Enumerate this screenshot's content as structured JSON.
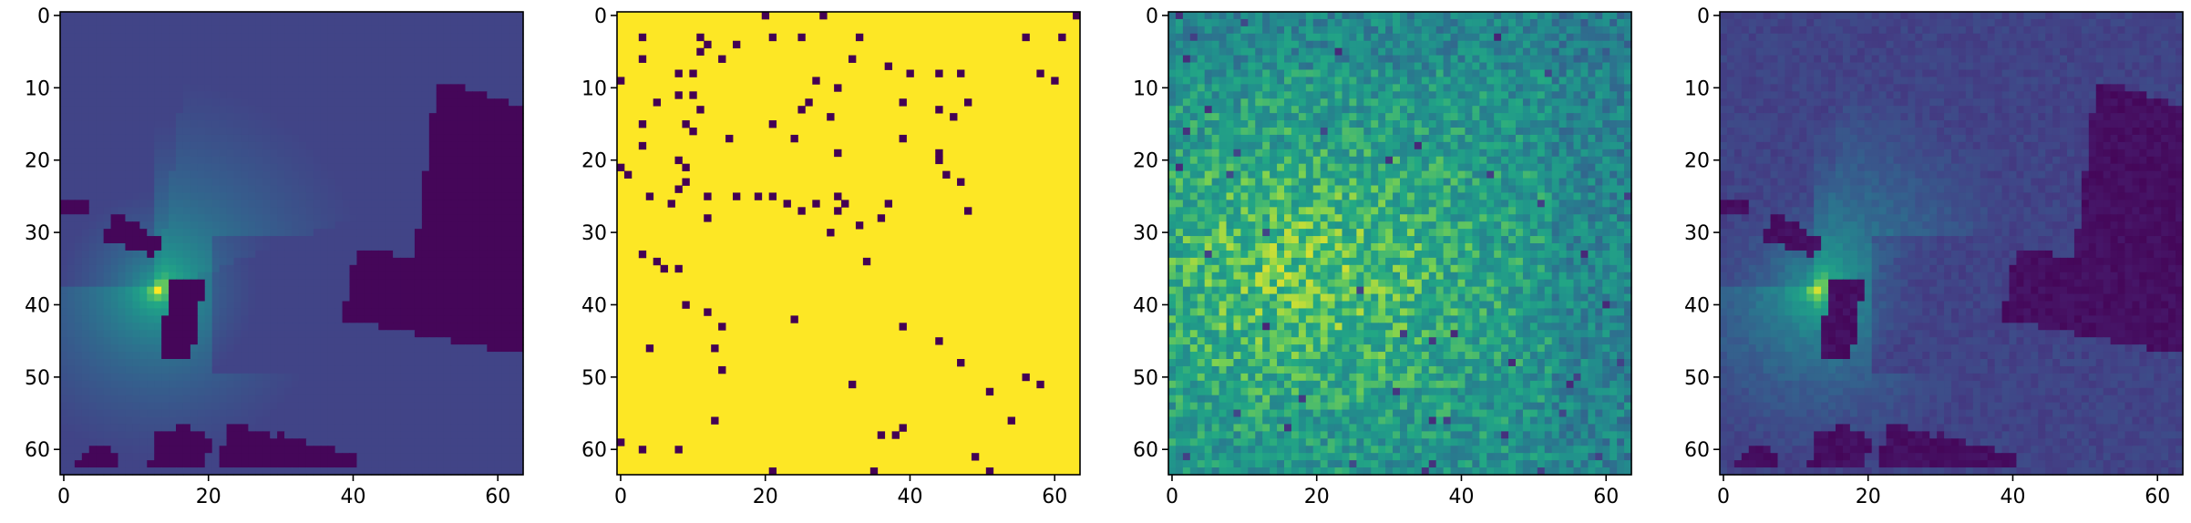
{
  "chart_data": [
    {
      "type": "heatmap",
      "panel": "radio-map",
      "grid_size": [
        64,
        64
      ],
      "xlim": [
        0,
        63
      ],
      "ylim": [
        63,
        0
      ],
      "xticks": [
        "0",
        "20",
        "40",
        "60"
      ],
      "yticks": [
        "0",
        "10",
        "20",
        "30",
        "40",
        "50",
        "60"
      ],
      "colormap": "viridis",
      "transmitter": {
        "x": 13,
        "y": 38
      },
      "buildings": [
        {
          "polygon": [
            [
              0,
              25.5
            ],
            [
              4,
              26
            ],
            [
              4,
              28
            ],
            [
              0,
              27.5
            ]
          ]
        },
        {
          "polygon": [
            [
              7,
              28.5
            ],
            [
              9,
              28.5
            ],
            [
              14,
              31.5
            ],
            [
              13,
              34
            ],
            [
              6,
              31.5
            ]
          ]
        },
        {
          "polygon": [
            [
              15.5,
              36.5
            ],
            [
              20,
              37
            ],
            [
              18,
              48.5
            ],
            [
              13.5,
              48.5
            ]
          ]
        },
        {
          "polygon": [
            [
              52,
              10.5
            ],
            [
              55,
              10
            ],
            [
              62,
              12.5
            ],
            [
              64,
              13
            ],
            [
              64,
              47.5
            ],
            [
              39,
              42.5
            ],
            [
              41,
              32.5
            ],
            [
              49,
              34
            ]
          ]
        },
        {
          "polygon": [
            [
              1.5,
              63.5
            ],
            [
              3,
              61
            ],
            [
              5,
              59.5
            ],
            [
              8,
              61
            ],
            [
              7.5,
              63.5
            ]
          ]
        },
        {
          "polygon": [
            [
              12,
              63.5
            ],
            [
              13.5,
              58.5
            ],
            [
              17,
              57
            ],
            [
              21,
              59
            ],
            [
              20,
              63.5
            ]
          ]
        },
        {
          "polygon": [
            [
              21.5,
              63.5
            ],
            [
              23.5,
              56.5
            ],
            [
              30,
              59
            ],
            [
              28,
              63.5
            ]
          ]
        },
        {
          "polygon": [
            [
              28,
              63.5
            ],
            [
              30,
              58
            ],
            [
              36,
              60
            ],
            [
              35,
              63.5
            ]
          ]
        },
        {
          "polygon": [
            [
              34,
              63.5
            ],
            [
              36.5,
              60
            ],
            [
              41,
              61.5
            ],
            [
              42,
              63.5
            ]
          ]
        }
      ]
    },
    {
      "type": "heatmap",
      "panel": "sampling-mask",
      "grid_size": [
        64,
        64
      ],
      "xlim": [
        0,
        63
      ],
      "ylim": [
        63,
        0
      ],
      "xticks": [
        "0",
        "20",
        "40",
        "60"
      ],
      "yticks": [
        "0",
        "10",
        "20",
        "30",
        "40",
        "50",
        "60"
      ],
      "background_color": "#fde725",
      "sample_color": "#440154",
      "samples": [
        [
          20,
          0
        ],
        [
          28,
          0
        ],
        [
          63,
          0
        ],
        [
          3,
          3
        ],
        [
          11,
          3
        ],
        [
          21,
          3
        ],
        [
          25,
          3
        ],
        [
          33,
          3
        ],
        [
          56,
          3
        ],
        [
          61,
          3
        ],
        [
          12,
          4
        ],
        [
          16,
          4
        ],
        [
          3,
          6
        ],
        [
          11,
          5
        ],
        [
          32,
          6
        ],
        [
          14,
          6
        ],
        [
          37,
          7
        ],
        [
          40,
          8
        ],
        [
          8,
          8
        ],
        [
          10,
          8
        ],
        [
          44,
          8
        ],
        [
          47,
          8
        ],
        [
          58,
          8
        ],
        [
          60,
          9
        ],
        [
          0,
          9
        ],
        [
          8,
          11
        ],
        [
          10,
          11
        ],
        [
          27,
          9
        ],
        [
          30,
          10
        ],
        [
          5,
          12
        ],
        [
          11,
          13
        ],
        [
          26,
          12
        ],
        [
          25,
          13
        ],
        [
          39,
          12
        ],
        [
          44,
          13
        ],
        [
          48,
          12
        ],
        [
          46,
          14
        ],
        [
          21,
          15
        ],
        [
          29,
          14
        ],
        [
          3,
          15
        ],
        [
          9,
          15
        ],
        [
          10,
          16
        ],
        [
          3,
          18
        ],
        [
          15,
          17
        ],
        [
          24,
          17
        ],
        [
          30,
          19
        ],
        [
          39,
          17
        ],
        [
          44,
          19
        ],
        [
          8,
          20
        ],
        [
          9,
          21
        ],
        [
          44,
          20
        ],
        [
          0,
          21
        ],
        [
          45,
          22
        ],
        [
          1,
          22
        ],
        [
          9,
          23
        ],
        [
          47,
          23
        ],
        [
          8,
          24
        ],
        [
          12,
          25
        ],
        [
          16,
          25
        ],
        [
          19,
          25
        ],
        [
          4,
          25
        ],
        [
          30,
          25
        ],
        [
          30,
          27
        ],
        [
          37,
          26
        ],
        [
          31,
          26
        ],
        [
          27,
          26
        ],
        [
          25,
          27
        ],
        [
          21,
          25
        ],
        [
          23,
          26
        ],
        [
          7,
          26
        ],
        [
          12,
          28
        ],
        [
          48,
          27
        ],
        [
          36,
          28
        ],
        [
          29,
          30
        ],
        [
          33,
          29
        ],
        [
          3,
          33
        ],
        [
          34,
          34
        ],
        [
          6,
          35
        ],
        [
          5,
          34
        ],
        [
          8,
          35
        ],
        [
          14,
          43
        ],
        [
          13,
          46
        ],
        [
          14,
          49
        ],
        [
          9,
          40
        ],
        [
          24,
          42
        ],
        [
          12,
          41
        ],
        [
          39,
          43
        ],
        [
          44,
          45
        ],
        [
          47,
          48
        ],
        [
          4,
          46
        ],
        [
          32,
          51
        ],
        [
          51,
          52
        ],
        [
          56,
          50
        ],
        [
          58,
          51
        ],
        [
          54,
          56
        ],
        [
          13,
          56
        ],
        [
          36,
          58
        ],
        [
          38,
          58
        ],
        [
          39,
          57
        ],
        [
          0,
          59
        ],
        [
          3,
          60
        ],
        [
          8,
          60
        ],
        [
          49,
          61
        ],
        [
          21,
          63
        ],
        [
          35,
          63
        ],
        [
          51,
          63
        ]
      ]
    },
    {
      "type": "heatmap",
      "panel": "noisy-map",
      "grid_size": [
        64,
        64
      ],
      "xlim": [
        0,
        63
      ],
      "ylim": [
        63,
        0
      ],
      "xticks": [
        "0",
        "20",
        "40",
        "60"
      ],
      "yticks": [
        "0",
        "10",
        "20",
        "30",
        "40",
        "50",
        "60"
      ],
      "colormap": "viridis",
      "hotspot": {
        "x": 18,
        "y": 36
      },
      "dark_pixels": [
        [
          1,
          0
        ],
        [
          10,
          1
        ],
        [
          3,
          3
        ],
        [
          2,
          6
        ],
        [
          5,
          13
        ],
        [
          2,
          16
        ],
        [
          1,
          21
        ],
        [
          9,
          19
        ],
        [
          8,
          22
        ],
        [
          21,
          16
        ],
        [
          30,
          20
        ],
        [
          34,
          18
        ],
        [
          44,
          22
        ],
        [
          51,
          26
        ],
        [
          57,
          33
        ],
        [
          5,
          33
        ],
        [
          13,
          30
        ],
        [
          26,
          38
        ],
        [
          32,
          44
        ],
        [
          36,
          45
        ],
        [
          39,
          44
        ],
        [
          47,
          48
        ],
        [
          56,
          50
        ],
        [
          55,
          51
        ],
        [
          31,
          52
        ],
        [
          18,
          53
        ],
        [
          9,
          55
        ],
        [
          16,
          57
        ],
        [
          36,
          56
        ],
        [
          38,
          56
        ],
        [
          46,
          58
        ],
        [
          54,
          55
        ],
        [
          2,
          61
        ],
        [
          25,
          62
        ],
        [
          35,
          63
        ],
        [
          36,
          62
        ],
        [
          51,
          63
        ],
        [
          59,
          61
        ],
        [
          62,
          48
        ],
        [
          60,
          40
        ],
        [
          63,
          25
        ],
        [
          23,
          5
        ],
        [
          45,
          3
        ],
        [
          52,
          8
        ],
        [
          13,
          43
        ]
      ]
    },
    {
      "type": "heatmap",
      "panel": "reconstructed-map",
      "grid_size": [
        64,
        64
      ],
      "xlim": [
        0,
        63
      ],
      "ylim": [
        63,
        0
      ],
      "xticks": [
        "0",
        "20",
        "40",
        "60"
      ],
      "yticks": [
        "0",
        "10",
        "20",
        "30",
        "40",
        "50",
        "60"
      ],
      "colormap": "viridis",
      "same_scene_as": "radio-map"
    }
  ]
}
